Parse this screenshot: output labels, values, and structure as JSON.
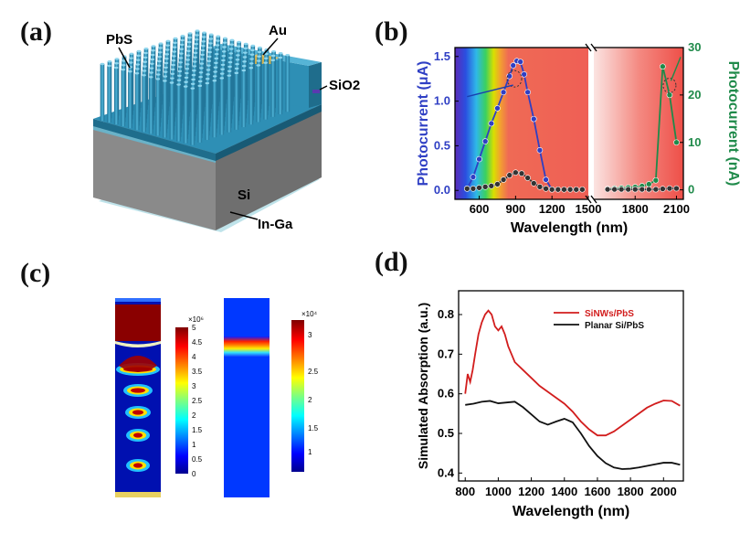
{
  "panels": {
    "a": {
      "label": "(a)",
      "annotations": [
        "PbS",
        "Au",
        "SiO2",
        "Si",
        "In-Ga"
      ]
    },
    "b": {
      "label": "(b)",
      "xlabel": "Wavelength (nm)",
      "ylabel_left": "Photocurrent (μA)",
      "ylabel_right": "Photocurrent (nA)"
    },
    "c": {
      "label": "(c)",
      "colorbar1": {
        "exponent": "×10⁶",
        "ticks": [
          "5",
          "4.5",
          "4",
          "3.5",
          "3",
          "2.5",
          "2",
          "1.5",
          "1",
          "0.5",
          "0"
        ]
      },
      "colorbar2": {
        "exponent": "×10⁴",
        "ticks": [
          "3",
          "2.5",
          "2",
          "1.5",
          "1"
        ]
      }
    },
    "d": {
      "label": "(d)"
    }
  },
  "colors": {
    "nanowire": "#2e8fb5",
    "blue_series": "#2f3fc4",
    "green_series": "#1f8a4a",
    "red_series": "#d21d1d",
    "black_series": "#111111"
  },
  "chart_data": [
    {
      "panel": "b",
      "type": "line",
      "xlabel": "Wavelength (nm)",
      "x_ticks_left": [
        600,
        900,
        1200,
        1500
      ],
      "x_ticks_right": [
        1800,
        2100
      ],
      "xlim_left": [
        400,
        1500
      ],
      "xlim_right": [
        1500,
        2150
      ],
      "axis_break": "between 1500 and 1550",
      "ylim_left": [
        -0.1,
        1.6
      ],
      "y_ticks_left": [
        0.0,
        0.5,
        1.0,
        1.5
      ],
      "ylim_right": [
        -2,
        30
      ],
      "y_ticks_right": [
        0,
        10,
        20,
        30
      ],
      "series": [
        {
          "axis": "left",
          "color": "#2f3fc4",
          "x": [
            500,
            550,
            600,
            650,
            700,
            750,
            800,
            850,
            880,
            910,
            940,
            970,
            1000,
            1050,
            1100,
            1150,
            1200
          ],
          "y": [
            0.02,
            0.15,
            0.35,
            0.55,
            0.75,
            0.92,
            1.1,
            1.28,
            1.4,
            1.45,
            1.44,
            1.3,
            1.1,
            0.8,
            0.45,
            0.12,
            0.01
          ]
        },
        {
          "axis": "left",
          "color": "#333333",
          "x": [
            500,
            550,
            600,
            650,
            700,
            750,
            800,
            850,
            900,
            950,
            1000,
            1050,
            1100,
            1150,
            1200,
            1250,
            1300,
            1350,
            1400,
            1450
          ],
          "y": [
            0.02,
            0.02,
            0.03,
            0.04,
            0.05,
            0.07,
            0.12,
            0.17,
            0.2,
            0.19,
            0.14,
            0.08,
            0.04,
            0.02,
            0.01,
            0.01,
            0.01,
            0.01,
            0.01,
            0.01
          ]
        },
        {
          "axis": "right",
          "color": "#1f8a4a",
          "x": [
            1600,
            1650,
            1700,
            1750,
            1800,
            1850,
            1900,
            1950,
            2000,
            2050,
            2100
          ],
          "y": [
            0.2,
            0.3,
            0.4,
            0.5,
            0.6,
            0.8,
            1.2,
            2.0,
            26.0,
            20.0,
            10.0
          ]
        },
        {
          "axis": "right",
          "color": "#333333",
          "x": [
            1600,
            1650,
            1700,
            1750,
            1800,
            1850,
            1900,
            1950,
            2000,
            2050,
            2100
          ],
          "y": [
            0.1,
            0.1,
            0.1,
            0.1,
            0.1,
            0.1,
            0.1,
            0.1,
            0.2,
            0.3,
            0.3
          ]
        }
      ]
    },
    {
      "panel": "d",
      "type": "line",
      "xlabel": "Wavelength (nm)",
      "ylabel": "Simulated Absorption (a.u.)",
      "xlim": [
        760,
        2120
      ],
      "ylim": [
        0.38,
        0.86
      ],
      "x_ticks": [
        800,
        1000,
        1200,
        1400,
        1600,
        1800,
        2000
      ],
      "y_ticks": [
        0.4,
        0.5,
        0.6,
        0.7,
        0.8
      ],
      "legend": "top-left",
      "series": [
        {
          "name": "SiNWs/PbS",
          "color": "#d21d1d",
          "x": [
            800,
            815,
            830,
            845,
            860,
            880,
            900,
            920,
            940,
            960,
            980,
            1000,
            1020,
            1040,
            1060,
            1080,
            1100,
            1150,
            1200,
            1250,
            1300,
            1350,
            1400,
            1450,
            1500,
            1550,
            1600,
            1650,
            1700,
            1750,
            1800,
            1850,
            1900,
            1950,
            2000,
            2050,
            2100
          ],
          "y": [
            0.6,
            0.65,
            0.63,
            0.66,
            0.7,
            0.75,
            0.78,
            0.8,
            0.81,
            0.8,
            0.77,
            0.76,
            0.77,
            0.75,
            0.72,
            0.7,
            0.68,
            0.66,
            0.64,
            0.62,
            0.605,
            0.59,
            0.575,
            0.555,
            0.53,
            0.51,
            0.495,
            0.495,
            0.505,
            0.52,
            0.535,
            0.55,
            0.565,
            0.575,
            0.583,
            0.582,
            0.57
          ]
        },
        {
          "name": "Planar Si/PbS",
          "color": "#111111",
          "x": [
            800,
            850,
            900,
            950,
            1000,
            1050,
            1100,
            1150,
            1200,
            1250,
            1300,
            1350,
            1400,
            1450,
            1500,
            1550,
            1600,
            1650,
            1700,
            1750,
            1800,
            1850,
            1900,
            1950,
            2000,
            2050,
            2100
          ],
          "y": [
            0.572,
            0.575,
            0.58,
            0.582,
            0.576,
            0.578,
            0.58,
            0.566,
            0.548,
            0.53,
            0.522,
            0.53,
            0.537,
            0.528,
            0.5,
            0.468,
            0.443,
            0.425,
            0.414,
            0.41,
            0.411,
            0.414,
            0.418,
            0.422,
            0.426,
            0.426,
            0.421
          ]
        }
      ]
    }
  ]
}
